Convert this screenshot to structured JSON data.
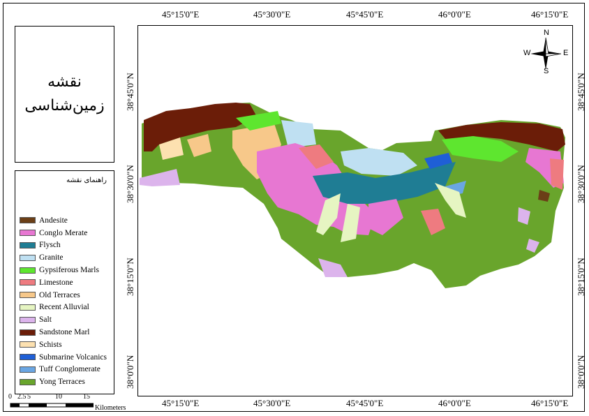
{
  "title": {
    "line1": "نقشه",
    "line2": "زمین‌شناسی"
  },
  "legend": {
    "title": "راهنمای نقشه",
    "items": [
      {
        "label": "Andesite",
        "color": "#6b3f17"
      },
      {
        "label": "Conglo Merate",
        "color": "#e777d2"
      },
      {
        "label": "Flysch",
        "color": "#1f7d94"
      },
      {
        "label": "Granite",
        "color": "#bfe0f2"
      },
      {
        "label": "Gypsiferous Marls",
        "color": "#5ee62f"
      },
      {
        "label": "Limestone",
        "color": "#ee7b80"
      },
      {
        "label": "Old Terraces",
        "color": "#f7c88a"
      },
      {
        "label": "Recent Alluvial",
        "color": "#e6f5c2"
      },
      {
        "label": "Salt",
        "color": "#dcb4ec"
      },
      {
        "label": "Sandstone Marl",
        "color": "#6b1d08"
      },
      {
        "label": "Schists",
        "color": "#fde1b0"
      },
      {
        "label": "Submarine Volcanics",
        "color": "#1f5fd6"
      },
      {
        "label": "Tuff Conglomerate",
        "color": "#6aa6e3"
      },
      {
        "label": "Yong Terraces",
        "color": "#69a52c"
      }
    ]
  },
  "graticule": {
    "lon_labels": [
      "45°15'0\"E",
      "45°30'0\"E",
      "45°45'0\"E",
      "46°0'0\"E",
      "46°15'0\"E"
    ],
    "lat_labels": [
      "38°45'0\"N",
      "38°30'0\"N",
      "38°15'0\"N",
      "38°0'0\"N"
    ]
  },
  "north_arrow": {
    "n": "N",
    "s": "S",
    "e": "E",
    "w": "W"
  },
  "scale": {
    "ticks": [
      "0",
      "2.5",
      "5",
      "10",
      "15"
    ],
    "unit": "Kilometers"
  }
}
